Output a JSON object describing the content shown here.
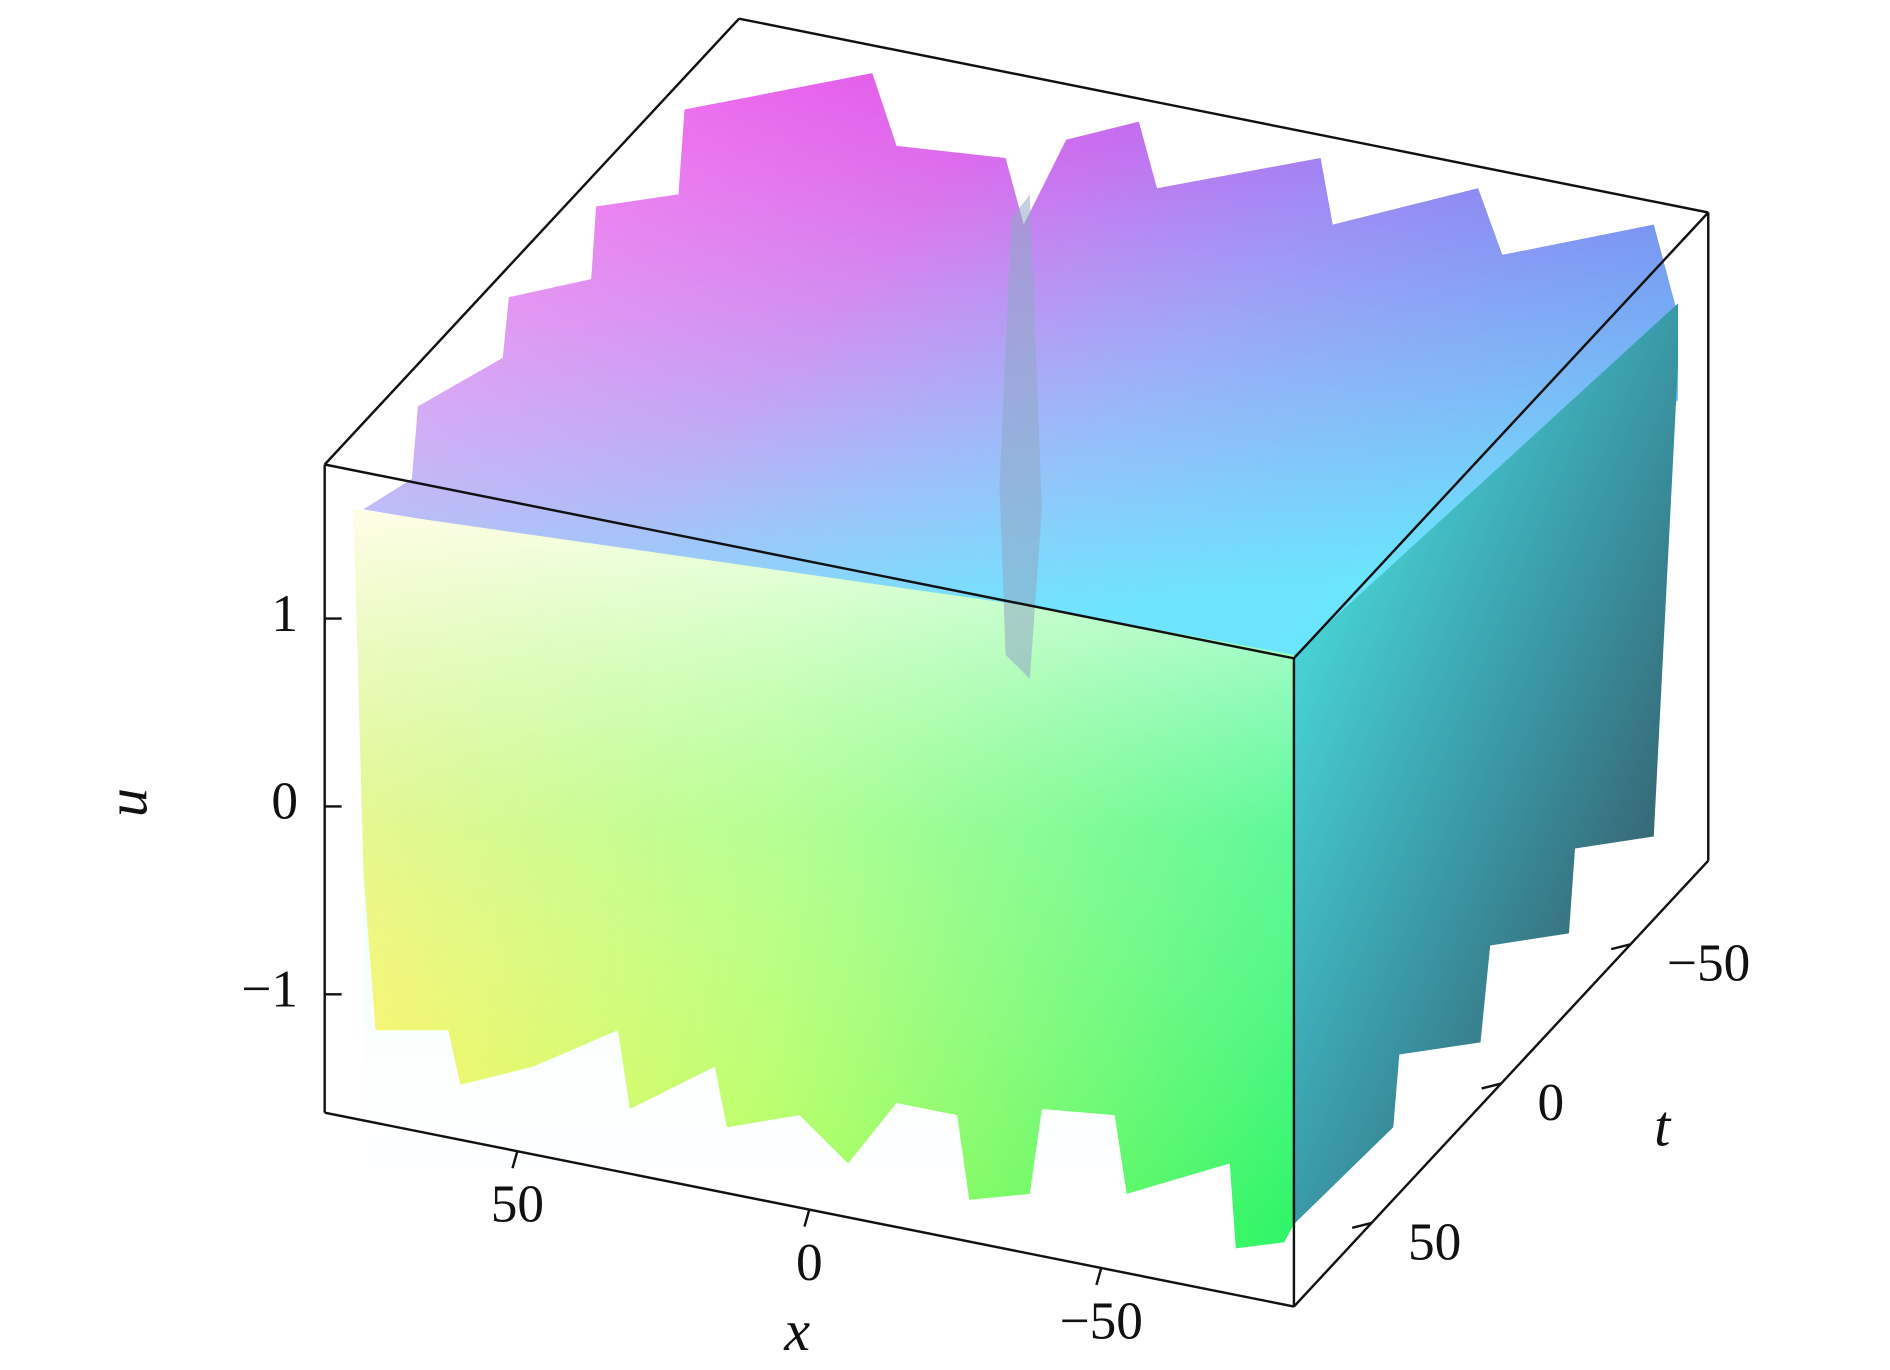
{
  "chart_data": {
    "type": "surface3d",
    "x_label": "x",
    "y_label": "t",
    "z_label": "u",
    "xlim": [
      83,
      -83
    ],
    "xticks": [
      50,
      0,
      {
        "value": -50,
        "label": "−50"
      }
    ],
    "ylim": [
      80,
      -80
    ],
    "yticks": [
      50,
      0,
      {
        "value": -50,
        "label": "−50"
      }
    ],
    "zlim": [
      -1.63,
      1.82
    ],
    "zticks": [
      {
        "value": -1,
        "label": "−1"
      },
      0,
      1
    ]
  }
}
